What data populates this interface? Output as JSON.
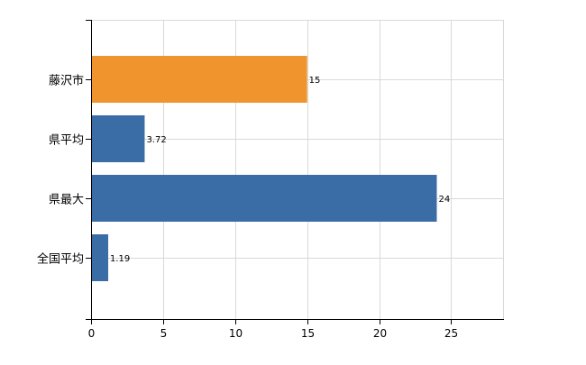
{
  "chart_data": {
    "type": "bar",
    "orientation": "horizontal",
    "categories": [
      "藤沢市",
      "県平均",
      "県最大",
      "全国平均"
    ],
    "values": [
      15,
      3.72,
      24,
      1.19
    ],
    "value_labels": [
      "15",
      "3.72",
      "24",
      "1.19"
    ],
    "bar_colors": [
      "#f0952e",
      "#3a6ca6",
      "#3a6ca6",
      "#3a6ca6"
    ],
    "xlim": [
      0,
      28.6
    ],
    "x_ticks": [
      0,
      5,
      10,
      15,
      20,
      25
    ],
    "x_tick_labels": [
      "0",
      "5",
      "10",
      "15",
      "20",
      "25"
    ],
    "grid": true,
    "grid_color": "#d9d9d9",
    "title": "",
    "xlabel": "",
    "ylabel": ""
  }
}
